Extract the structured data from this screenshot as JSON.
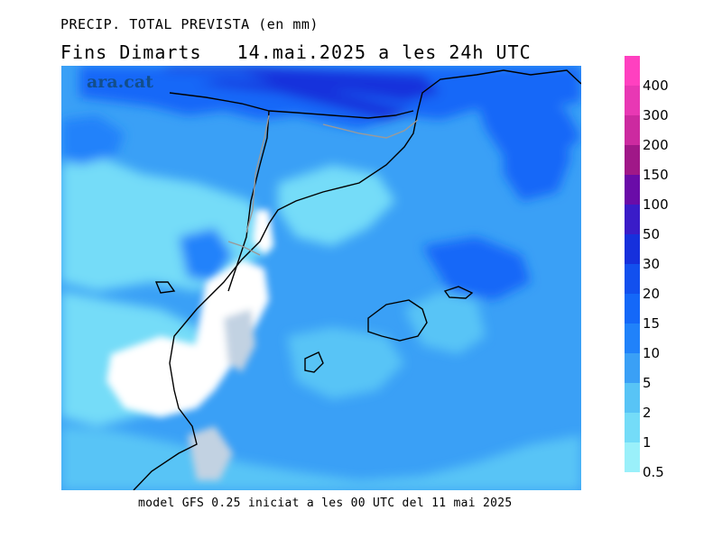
{
  "title": "PRECIP. TOTAL PREVISTA (en mm)",
  "subtitle": "Fins Dimarts   14.mai.2025 a les 24h UTC",
  "watermark": "ara.cat",
  "footer": "model GFS 0.25 iniciat a les 00 UTC del 11 mai 2025",
  "legend": {
    "unit": "mm",
    "levels": [
      {
        "label": "400",
        "color": "#ff40c0"
      },
      {
        "label": "300",
        "color": "#e838b4"
      },
      {
        "label": "200",
        "color": "#cc2aa0"
      },
      {
        "label": "150",
        "color": "#a01888"
      },
      {
        "label": "100",
        "color": "#6a0ca8"
      },
      {
        "label": "50",
        "color": "#3a1cc8"
      },
      {
        "label": "30",
        "color": "#1630dc"
      },
      {
        "label": "20",
        "color": "#1250ee"
      },
      {
        "label": "15",
        "color": "#1468f8"
      },
      {
        "label": "10",
        "color": "#2082fa"
      },
      {
        "label": "5",
        "color": "#3aa0f6"
      },
      {
        "label": "2",
        "color": "#58c4f6"
      },
      {
        "label": "1",
        "color": "#74dcf8"
      },
      {
        "label": "0.5",
        "color": "#9af0fa"
      }
    ]
  },
  "map_colors": {
    "background": "#3aa0f6",
    "coast": "#000000",
    "border": "#9a9a9a",
    "dry": "#ffffff",
    "land_shade": "#c2d2e2"
  }
}
